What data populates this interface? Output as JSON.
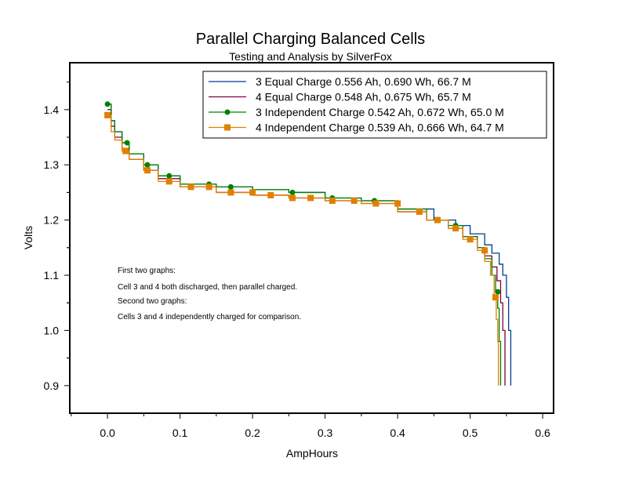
{
  "chart_data": {
    "type": "line",
    "title": "Parallel Charging Balanced Cells",
    "subtitle": "Testing and Analysis by SilverFox",
    "xlabel": "AmpHours",
    "ylabel": "Volts",
    "xlim": [
      -0.052,
      0.615
    ],
    "ylim": [
      0.85,
      1.485
    ],
    "xticks": [
      "0.0",
      "0.1",
      "0.2",
      "0.3",
      "0.4",
      "0.5",
      "0.6"
    ],
    "xtick_values": [
      0,
      0.1,
      0.2,
      0.3,
      0.4,
      0.5,
      0.6
    ],
    "yticks": [
      "0.9",
      "1.0",
      "1.1",
      "1.2",
      "1.3",
      "1.4"
    ],
    "ytick_values": [
      0.9,
      1.0,
      1.1,
      1.2,
      1.3,
      1.4
    ],
    "grid": false,
    "legend_position": "top-right",
    "line_style": "step",
    "annotations": [
      "First two graphs:",
      "Cell 3 and 4 both discharged, then parallel charged.",
      "Second two graphs:",
      "Cells 3 and 4 independently charged for comparison."
    ],
    "series": [
      {
        "name": "3 Equal Charge  0.556 Ah, 0.690 Wh, 66.7 M",
        "color": "#003f8a",
        "marker": "none",
        "x": [
          0,
          0.005,
          0.01,
          0.02,
          0.03,
          0.05,
          0.07,
          0.1,
          0.15,
          0.2,
          0.25,
          0.3,
          0.35,
          0.4,
          0.45,
          0.48,
          0.5,
          0.52,
          0.53,
          0.54,
          0.545,
          0.55,
          0.553,
          0.556,
          0.556
        ],
        "y": [
          1.41,
          1.38,
          1.36,
          1.34,
          1.32,
          1.3,
          1.28,
          1.265,
          1.26,
          1.255,
          1.25,
          1.24,
          1.235,
          1.22,
          1.2,
          1.19,
          1.175,
          1.155,
          1.14,
          1.12,
          1.1,
          1.06,
          1.0,
          0.95,
          0.9
        ]
      },
      {
        "name": "4 Equal Charge  0.548 Ah, 0.675 Wh, 65.7 M",
        "color": "#800040",
        "marker": "none",
        "x": [
          0,
          0.005,
          0.01,
          0.02,
          0.03,
          0.05,
          0.07,
          0.1,
          0.15,
          0.2,
          0.25,
          0.3,
          0.35,
          0.4,
          0.44,
          0.47,
          0.49,
          0.51,
          0.52,
          0.53,
          0.537,
          0.542,
          0.545,
          0.548,
          0.548
        ],
        "y": [
          1.4,
          1.37,
          1.35,
          1.33,
          1.31,
          1.29,
          1.275,
          1.26,
          1.25,
          1.245,
          1.24,
          1.235,
          1.23,
          1.215,
          1.2,
          1.185,
          1.17,
          1.15,
          1.135,
          1.115,
          1.09,
          1.05,
          1.0,
          0.95,
          0.9
        ]
      },
      {
        "name": "3 Independent Charge  0.542 Ah, 0.672 Wh, 65.0 M",
        "color": "#008000",
        "marker": "circle",
        "x": [
          0,
          0.005,
          0.01,
          0.02,
          0.03,
          0.05,
          0.07,
          0.1,
          0.15,
          0.2,
          0.25,
          0.3,
          0.35,
          0.4,
          0.44,
          0.47,
          0.49,
          0.51,
          0.52,
          0.53,
          0.535,
          0.538,
          0.54,
          0.542,
          0.542
        ],
        "y": [
          1.41,
          1.38,
          1.36,
          1.34,
          1.32,
          1.3,
          1.28,
          1.265,
          1.26,
          1.255,
          1.25,
          1.24,
          1.235,
          1.22,
          1.2,
          1.19,
          1.17,
          1.15,
          1.13,
          1.1,
          1.07,
          1.04,
          0.98,
          0.93,
          0.9
        ],
        "marker_x": [
          0,
          0.027,
          0.055,
          0.085,
          0.14,
          0.17,
          0.255,
          0.31,
          0.368,
          0.48,
          0.538
        ]
      },
      {
        "name": "4 Independent Charge  0.539 Ah, 0.666 Wh, 64.7 M",
        "color": "#e08000",
        "marker": "square",
        "x": [
          0,
          0.005,
          0.01,
          0.02,
          0.03,
          0.05,
          0.07,
          0.1,
          0.15,
          0.2,
          0.25,
          0.3,
          0.35,
          0.4,
          0.44,
          0.47,
          0.49,
          0.51,
          0.52,
          0.528,
          0.533,
          0.536,
          0.538,
          0.539,
          0.539
        ],
        "y": [
          1.39,
          1.36,
          1.345,
          1.325,
          1.31,
          1.29,
          1.27,
          1.26,
          1.25,
          1.245,
          1.24,
          1.235,
          1.23,
          1.215,
          1.2,
          1.185,
          1.165,
          1.145,
          1.125,
          1.1,
          1.06,
          1.02,
          0.98,
          0.93,
          0.9
        ],
        "marker_x": [
          0,
          0.025,
          0.055,
          0.085,
          0.115,
          0.14,
          0.17,
          0.2,
          0.225,
          0.255,
          0.28,
          0.31,
          0.34,
          0.37,
          0.4,
          0.43,
          0.455,
          0.48,
          0.5,
          0.52,
          0.535
        ]
      }
    ]
  }
}
